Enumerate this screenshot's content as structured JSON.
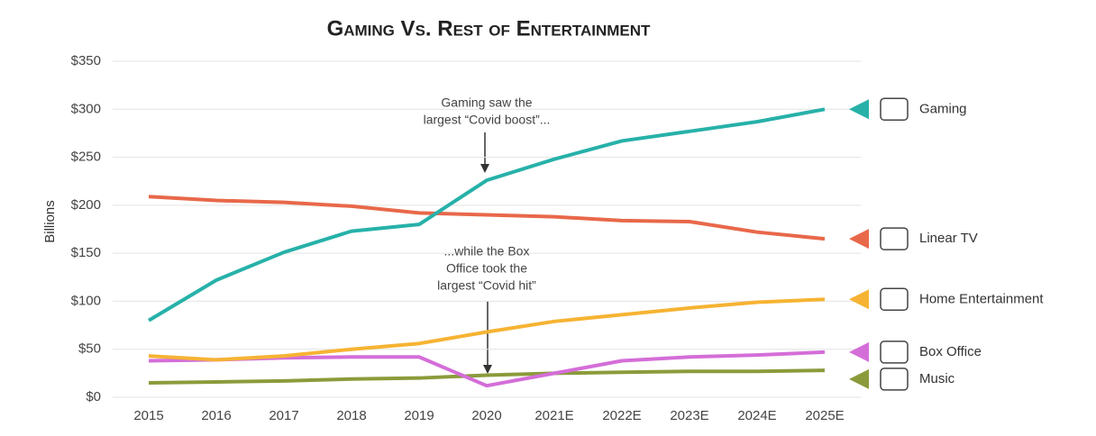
{
  "chart_data": {
    "type": "line",
    "title": "Gaming Vs. Rest of Entertainment",
    "y_label": "Billions",
    "categories": [
      "2015",
      "2016",
      "2017",
      "2018",
      "2019",
      "2020",
      "2021E",
      "2022E",
      "2023E",
      "2024E",
      "2025E"
    ],
    "series": [
      {
        "name": "Gaming",
        "color": "#27b1a9",
        "values": [
          80,
          122,
          151,
          173,
          180,
          226,
          248,
          267,
          277,
          287,
          300
        ]
      },
      {
        "name": "Linear TV",
        "color": "#e8684a",
        "values": [
          209,
          205,
          203,
          199,
          192,
          190,
          188,
          184,
          183,
          172,
          165
        ]
      },
      {
        "name": "Home Entertainment",
        "color": "#f6b333",
        "values": [
          43,
          39,
          43,
          50,
          56,
          68,
          79,
          86,
          93,
          99,
          102
        ]
      },
      {
        "name": "Box Office",
        "color": "#d46ed8",
        "values": [
          38,
          39,
          41,
          42,
          42,
          12,
          25,
          38,
          42,
          44,
          47
        ]
      },
      {
        "name": "Music",
        "color": "#8b9b3b",
        "values": [
          15,
          16,
          17,
          19,
          20,
          23,
          25,
          26,
          27,
          27,
          28
        ]
      }
    ],
    "ylim": [
      0,
      350
    ],
    "yticks": [
      {
        "value": 0,
        "label": "$0"
      },
      {
        "value": 50,
        "label": "$50"
      },
      {
        "value": 100,
        "label": "$100"
      },
      {
        "value": 150,
        "label": "$150"
      },
      {
        "value": 200,
        "label": "$200"
      },
      {
        "value": 250,
        "label": "$250"
      },
      {
        "value": 300,
        "label": "$300"
      },
      {
        "value": 350,
        "label": "$350"
      }
    ],
    "grid": true,
    "annotations": [
      {
        "lines": [
          "Gaming saw the",
          "largest “Covid boost”..."
        ]
      },
      {
        "lines": [
          "...while the Box",
          "Office took  the",
          "largest “Covid hit”"
        ]
      }
    ]
  }
}
